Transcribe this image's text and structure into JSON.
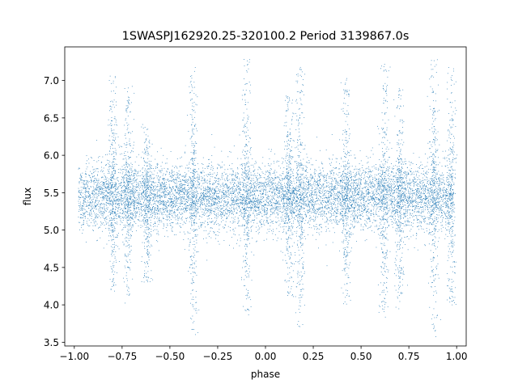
{
  "chart_data": {
    "type": "scatter",
    "title": "1SWASPJ162920.25-320100.2 Period 3139867.0s",
    "xlabel": "phase",
    "ylabel": "flux",
    "xlim": [
      -1.05,
      1.05
    ],
    "ylim": [
      3.45,
      7.45
    ],
    "xticks": [
      -1.0,
      -0.75,
      -0.5,
      -0.25,
      0.0,
      0.25,
      0.5,
      0.75,
      1.0
    ],
    "xtick_labels": [
      "−1.00",
      "−0.75",
      "−0.50",
      "−0.25",
      "0.00",
      "0.25",
      "0.50",
      "0.75",
      "1.00"
    ],
    "yticks": [
      3.5,
      4.0,
      4.5,
      5.0,
      5.5,
      6.0,
      6.5,
      7.0
    ],
    "ytick_labels": [
      "3.5",
      "4.0",
      "4.5",
      "5.0",
      "5.5",
      "6.0",
      "6.5",
      "7.0"
    ],
    "grid": false,
    "marker_color": "#1f77b4",
    "series": [
      {
        "x_range": [
          -0.98,
          0.98
        ],
        "median_flux": 5.45,
        "approx_points": 12000,
        "clusters": [
          {
            "phase": -0.8,
            "ymin": 4.2,
            "ymax": 7.1
          },
          {
            "phase": -0.72,
            "ymin": 4.0,
            "ymax": 6.9
          },
          {
            "phase": -0.62,
            "ymin": 4.3,
            "ymax": 6.4
          },
          {
            "phase": -0.38,
            "ymin": 3.6,
            "ymax": 7.2
          },
          {
            "phase": -0.1,
            "ymin": 3.9,
            "ymax": 7.3
          },
          {
            "phase": 0.12,
            "ymin": 4.1,
            "ymax": 6.8
          },
          {
            "phase": 0.18,
            "ymin": 3.7,
            "ymax": 7.2
          },
          {
            "phase": 0.42,
            "ymin": 4.0,
            "ymax": 7.1
          },
          {
            "phase": 0.62,
            "ymin": 3.8,
            "ymax": 7.2
          },
          {
            "phase": 0.7,
            "ymin": 4.0,
            "ymax": 6.9
          },
          {
            "phase": 0.88,
            "ymin": 3.6,
            "ymax": 7.3
          },
          {
            "phase": 0.97,
            "ymin": 4.0,
            "ymax": 7.2
          }
        ]
      }
    ]
  }
}
